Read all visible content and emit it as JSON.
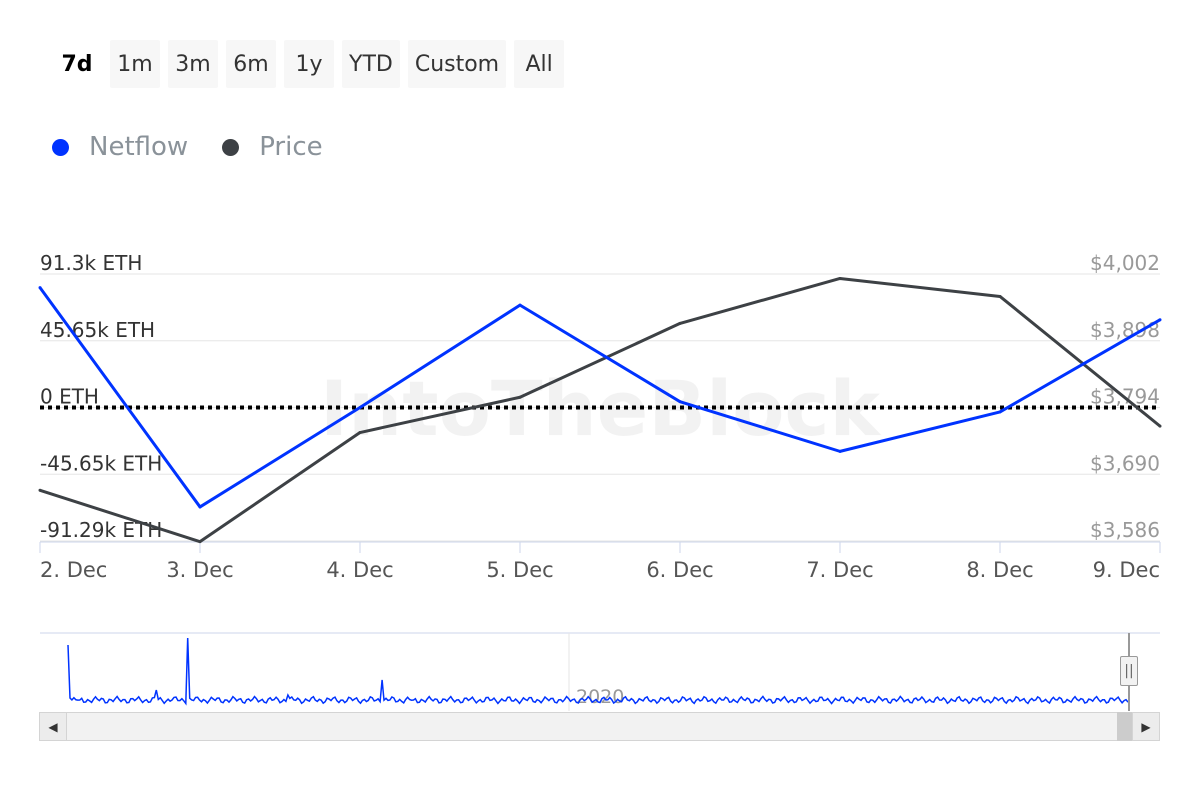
{
  "range_buttons": [
    "7d",
    "1m",
    "3m",
    "6m",
    "1y",
    "YTD",
    "Custom",
    "All"
  ],
  "active_range": "7d",
  "colors": {
    "netflow": "#0033ff",
    "price": "#3d4145",
    "grid": "#e6e6e6",
    "axis_label": "#999999"
  },
  "navigator": {
    "year_label": "2020",
    "handle_glyph": "||",
    "left_arrow": "◀",
    "right_arrow": "▶"
  },
  "watermark": "IntoTheBlock",
  "chart_data": {
    "type": "line",
    "x": [
      "2. Dec",
      "3. Dec",
      "4. Dec",
      "5. Dec",
      "6. Dec",
      "7. Dec",
      "8. Dec",
      "9. Dec"
    ],
    "series": [
      {
        "name": "Netflow",
        "axis": "left",
        "color": "#0033ff",
        "values": [
          82000,
          -68000,
          0,
          70000,
          4000,
          -30000,
          -3000,
          60000
        ]
      },
      {
        "name": "Price",
        "axis": "right",
        "color": "#3d4145",
        "values": [
          3665,
          3585,
          3755,
          3810,
          3925,
          3995,
          3967,
          3765
        ]
      }
    ],
    "left_axis": {
      "ticks": [
        "91.3k ETH",
        "45.65k ETH",
        "0 ETH",
        "-45.65k ETH",
        "-91.29k ETH"
      ],
      "tick_values": [
        91300,
        45650,
        0,
        -45650,
        -91290
      ]
    },
    "right_axis": {
      "ticks": [
        "$4,002",
        "$3,898",
        "$3,794",
        "$3,690",
        "$3,586"
      ],
      "tick_values": [
        4002,
        3898,
        3794,
        3690,
        3586
      ]
    },
    "zero_line": "dotted",
    "legend": "top-left",
    "grid": true
  }
}
